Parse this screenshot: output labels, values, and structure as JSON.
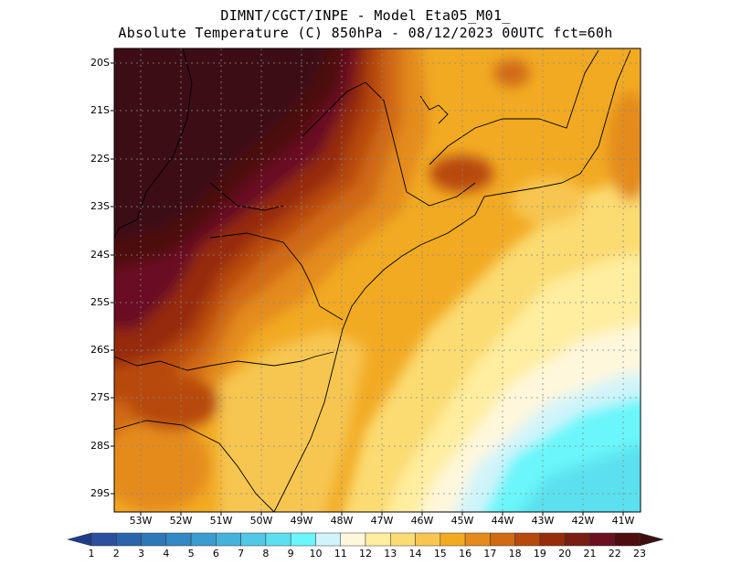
{
  "header": {
    "line1": "DIMNT/CGCT/INPE -  Model Eta05_M01_",
    "line2": "Absolute Temperature (C) 850hPa -  08/12/2023 00UTC fct=60h"
  },
  "map": {
    "lat_labels": [
      "20S",
      "21S",
      "22S",
      "23S",
      "24S",
      "25S",
      "26S",
      "27S",
      "28S",
      "29S"
    ],
    "lon_labels": [
      "53W",
      "52W",
      "51W",
      "50W",
      "49W",
      "48W",
      "47W",
      "46W",
      "45W",
      "44W",
      "43W",
      "42W",
      "41W"
    ],
    "lat_range": [
      -29.5,
      -19.9
    ],
    "lon_range": [
      -53.8,
      -40.6
    ]
  },
  "colorbar": {
    "values": [
      "1",
      "2",
      "3",
      "4",
      "5",
      "6",
      "7",
      "8",
      "9",
      "10",
      "11",
      "12",
      "13",
      "14",
      "15",
      "16",
      "17",
      "18",
      "19",
      "20",
      "21",
      "22",
      "23"
    ],
    "colors": [
      "#1e3c8c",
      "#2a4f9e",
      "#2c64ac",
      "#2f78b8",
      "#3389c4",
      "#3a9ccf",
      "#44b2db",
      "#50c8e6",
      "#5ae0ee",
      "#6af6fa",
      "#d0f4fa",
      "#fff7dc",
      "#ffeea0",
      "#fbdc72",
      "#f7c651",
      "#f2aa23",
      "#e48b1b",
      "#d06a13",
      "#b8490c",
      "#962c0a",
      "#7a1d12",
      "#6a1020",
      "#4e0e10",
      "#3e1012"
    ]
  }
}
